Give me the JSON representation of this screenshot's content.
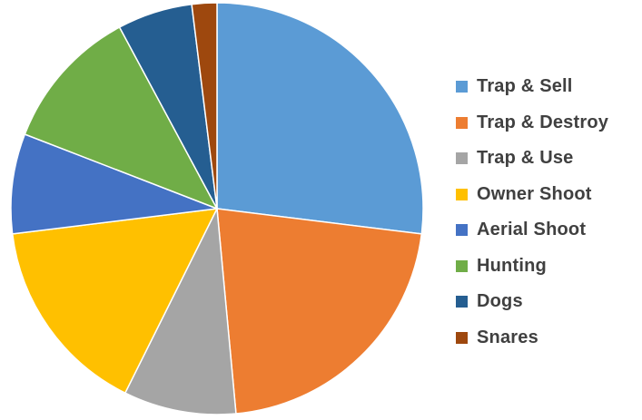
{
  "chart_data": {
    "type": "pie",
    "title": "",
    "legend_position": "right",
    "start_angle_deg": 0,
    "direction": "clockwise",
    "slices": [
      {
        "label": "Trap & Sell",
        "value": 27.5,
        "color": "#5B9BD5"
      },
      {
        "label": "Trap & Destroy",
        "value": 22.0,
        "color": "#ED7D31"
      },
      {
        "label": "Trap & Use",
        "value": 9.0,
        "color": "#A5A5A5"
      },
      {
        "label": "Owner Shoot",
        "value": 16.0,
        "color": "#FFC000"
      },
      {
        "label": "Aerial Shoot",
        "value": 8.0,
        "color": "#4472C4"
      },
      {
        "label": "Hunting",
        "value": 11.5,
        "color": "#70AD47"
      },
      {
        "label": "Dogs",
        "value": 6.0,
        "color": "#255E91"
      },
      {
        "label": "Snares",
        "value": 2.0,
        "color": "#9E480E"
      }
    ]
  }
}
